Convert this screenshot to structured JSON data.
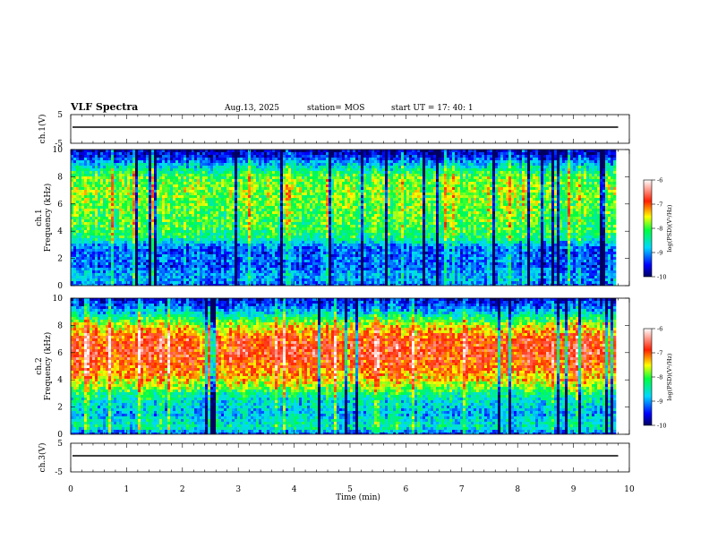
{
  "header": {
    "title": "VLF Spectra",
    "date": "Aug.13, 2025",
    "station": "station= MOS",
    "start": "start  UT  =    17: 40: 1"
  },
  "chart_data": [
    {
      "type": "line",
      "panel": "ch1-waveform",
      "ylabel": "ch.1(V)",
      "yticks": [
        "5",
        "-5"
      ],
      "ylim": [
        -5,
        5
      ],
      "xlim": [
        0,
        10
      ],
      "x": [
        0,
        9.8
      ],
      "values": [
        0,
        0
      ],
      "data_end_min": 9.8
    },
    {
      "type": "heatmap",
      "panel": "ch1-spectrogram",
      "ylabel_top": "ch.1",
      "ylabel": "Frequency  (kHz)",
      "yticks": [
        "0",
        "2",
        "4",
        "6",
        "8",
        "10"
      ],
      "ylim": [
        0,
        10
      ],
      "xlim": [
        0,
        10
      ],
      "data_end_min": 9.8,
      "mean_level_by_freq_khz": {
        "freq": [
          0,
          0.5,
          1,
          1.5,
          2,
          2.5,
          3,
          3.5,
          4,
          5,
          6,
          7,
          8,
          8.5,
          9,
          9.5,
          10
        ],
        "level": [
          -9.2,
          -8.9,
          -9.0,
          -9.3,
          -9.1,
          -9.3,
          -9.0,
          -8.3,
          -8.1,
          -8.0,
          -7.9,
          -7.8,
          -8.0,
          -8.4,
          -8.9,
          -9.5,
          -9.8
        ]
      },
      "colorbar": {
        "label": "log(PSD)(V²/Hz)",
        "ticks": [
          "-6",
          "-7",
          "-8",
          "-9",
          "-10"
        ],
        "range": [
          -10,
          -6
        ]
      }
    },
    {
      "type": "heatmap",
      "panel": "ch2-spectrogram",
      "ylabel_top": "ch.2",
      "ylabel": "Frequency  (kHz)",
      "yticks": [
        "0",
        "2",
        "4",
        "6",
        "8",
        "10"
      ],
      "ylim": [
        0,
        10
      ],
      "xlim": [
        0,
        10
      ],
      "data_end_min": 9.8,
      "mean_level_by_freq_khz": {
        "freq": [
          0,
          0.5,
          1,
          1.5,
          2,
          2.5,
          3,
          3.5,
          4,
          5,
          6,
          7,
          8,
          8.5,
          9,
          9.5,
          10
        ],
        "level": [
          -9.3,
          -8.5,
          -8.6,
          -8.9,
          -8.7,
          -8.6,
          -8.3,
          -7.8,
          -7.4,
          -7.0,
          -6.8,
          -6.9,
          -7.6,
          -8.2,
          -8.8,
          -9.3,
          -9.6
        ]
      },
      "colorbar": {
        "label": "log(PSD)(V²/Hz)",
        "ticks": [
          "-6",
          "-7",
          "-8",
          "-9",
          "-10"
        ],
        "range": [
          -10,
          -6
        ]
      }
    },
    {
      "type": "line",
      "panel": "ch3-waveform",
      "ylabel": "ch.3(V)",
      "yticks": [
        "5",
        "-5"
      ],
      "ylim": [
        -5,
        5
      ],
      "xlim": [
        0,
        10
      ],
      "x": [
        0,
        9.8
      ],
      "values": [
        0,
        0
      ],
      "data_end_min": 9.8
    }
  ],
  "xaxis": {
    "label": "Time  (min)",
    "ticks": [
      "0",
      "1",
      "2",
      "3",
      "4",
      "5",
      "6",
      "7",
      "8",
      "9",
      "10"
    ]
  }
}
